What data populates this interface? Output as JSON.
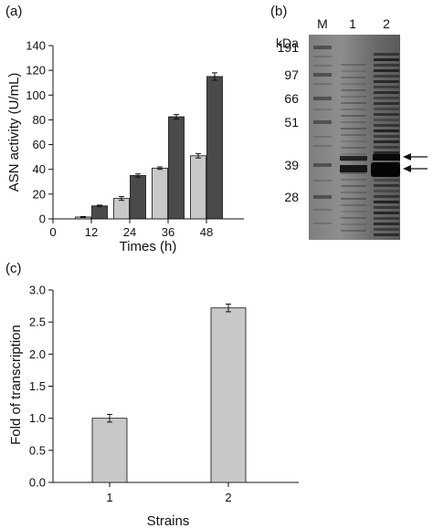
{
  "panels": {
    "a": "(a)",
    "b": "(b)",
    "c": "(c)"
  },
  "chart_data": [
    {
      "panel": "a",
      "type": "bar",
      "xlabel": "Times (h)",
      "ylabel": "ASN activity (U/mL)",
      "x_ticks": [
        "0",
        "12",
        "24",
        "36",
        "48"
      ],
      "y_ticks": [
        "0",
        "20",
        "40",
        "60",
        "80",
        "100",
        "120",
        "140"
      ],
      "ylim": [
        0,
        140
      ],
      "categories": [
        "12",
        "24",
        "36",
        "48"
      ],
      "series": [
        {
          "values": [
            1.5,
            16.5,
            41,
            51
          ],
          "errors": [
            0.4,
            1.5,
            1.0,
            1.8
          ],
          "color": "#c8c8c8"
        },
        {
          "values": [
            10.5,
            35,
            82.5,
            115
          ],
          "errors": [
            0.6,
            1.3,
            1.8,
            3.0
          ],
          "color": "#4a4a4a"
        }
      ],
      "grid": false
    },
    {
      "panel": "c",
      "type": "bar",
      "xlabel": "Strains",
      "ylabel": "Fold of transcription",
      "y_ticks": [
        "0.0",
        "0.5",
        "1.0",
        "1.5",
        "2.0",
        "2.5",
        "3.0"
      ],
      "ylim": [
        0,
        3.0
      ],
      "categories": [
        "1",
        "2"
      ],
      "values": [
        1.0,
        2.72
      ],
      "errors": [
        0.06,
        0.06
      ],
      "color": "#c8c8c8",
      "grid": false
    }
  ],
  "gel": {
    "unit_label": "kDa",
    "lanes": [
      "M",
      "1",
      "2"
    ],
    "markers": [
      "191",
      "97",
      "66",
      "51",
      "39",
      "28"
    ]
  }
}
